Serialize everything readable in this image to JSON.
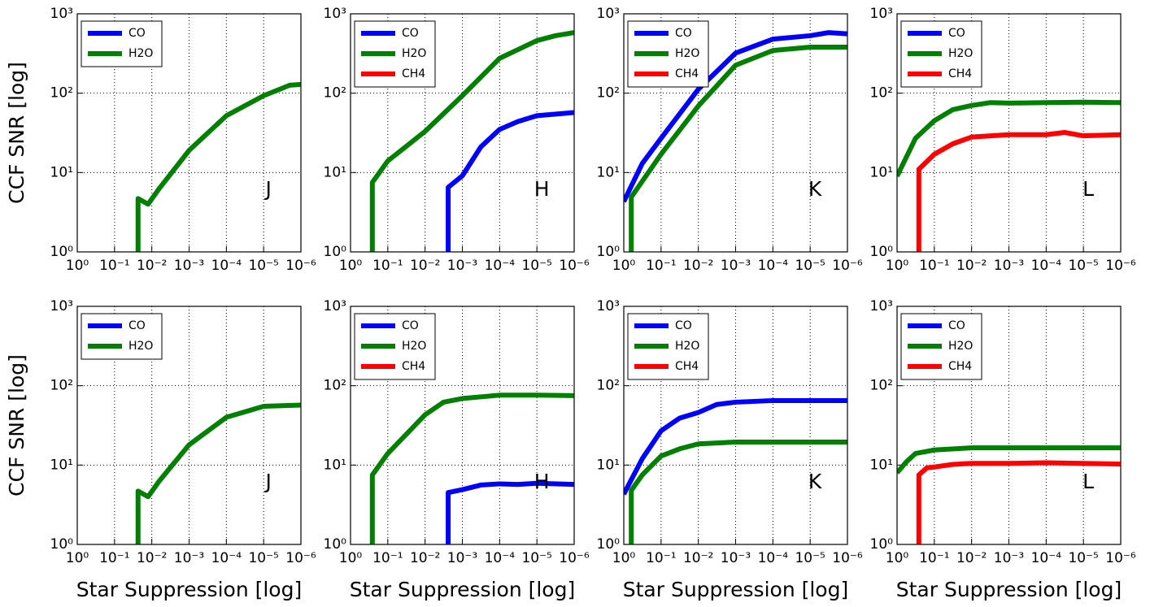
{
  "chart_data": [
    {
      "type": "line",
      "xscale": "log",
      "yscale": "log",
      "xlim": [
        1,
        1e-06
      ],
      "ylim": [
        1,
        1000
      ],
      "grid": true,
      "legend": "upper left",
      "annotation": "J",
      "ylabel": "CCF SNR [log]",
      "xticks": [
        {
          "value": 1,
          "label": "10⁰"
        },
        {
          "value": 0.1,
          "label": "10⁻¹"
        },
        {
          "value": 0.01,
          "label": "10⁻²"
        },
        {
          "value": 0.001,
          "label": "10⁻³"
        },
        {
          "value": 0.0001,
          "label": "10⁻⁴"
        },
        {
          "value": 1e-05,
          "label": "10⁻⁵"
        },
        {
          "value": 1e-06,
          "label": "10⁻⁶"
        }
      ],
      "yticks": [
        {
          "value": 1,
          "label": "10⁰"
        },
        {
          "value": 10,
          "label": "10¹"
        },
        {
          "value": 100,
          "label": "10²"
        },
        {
          "value": 1000,
          "label": "10³"
        }
      ],
      "series": [
        {
          "name": "CO",
          "color": "#0000ff",
          "x": [],
          "values": []
        },
        {
          "name": "H2O",
          "color": "#008000",
          "x": [
            0.0234,
            0.0234,
            0.0126,
            0.0063,
            0.001,
            0.0001,
            1e-05,
            2e-06,
            1e-06
          ],
          "values": [
            1,
            4.7,
            4.0,
            6.3,
            19,
            52,
            93,
            126,
            129
          ]
        }
      ]
    },
    {
      "type": "line",
      "xscale": "log",
      "yscale": "log",
      "xlim": [
        1,
        1e-06
      ],
      "ylim": [
        1,
        1000
      ],
      "grid": true,
      "legend": "upper left",
      "annotation": "H",
      "xticks": [
        {
          "value": 1,
          "label": "10⁰"
        },
        {
          "value": 0.1,
          "label": "10⁻¹"
        },
        {
          "value": 0.01,
          "label": "10⁻²"
        },
        {
          "value": 0.001,
          "label": "10⁻³"
        },
        {
          "value": 0.0001,
          "label": "10⁻⁴"
        },
        {
          "value": 1e-05,
          "label": "10⁻⁵"
        },
        {
          "value": 1e-06,
          "label": "10⁻⁶"
        }
      ],
      "yticks": [
        {
          "value": 1,
          "label": "10⁰"
        },
        {
          "value": 10,
          "label": "10¹"
        },
        {
          "value": 100,
          "label": "10²"
        },
        {
          "value": 1000,
          "label": "10³"
        }
      ],
      "series": [
        {
          "name": "CO",
          "color": "#0000ff",
          "x": [
            0.0024,
            0.0024,
            0.001,
            0.00032,
            0.0001,
            3.2e-05,
            1e-05,
            1e-06
          ],
          "values": [
            1,
            6.5,
            9.1,
            21,
            35,
            44,
            52,
            57
          ]
        },
        {
          "name": "H2O",
          "color": "#008000",
          "x": [
            0.26,
            0.26,
            0.1,
            0.01,
            0.001,
            0.0001,
            1e-05,
            3.2e-06,
            1e-06
          ],
          "values": [
            1,
            7.5,
            14,
            33,
            93,
            275,
            460,
            530,
            580
          ]
        },
        {
          "name": "CH4",
          "color": "#ff0000",
          "x": [],
          "values": []
        }
      ]
    },
    {
      "type": "line",
      "xscale": "log",
      "yscale": "log",
      "xlim": [
        1,
        1e-06
      ],
      "ylim": [
        1,
        1000
      ],
      "grid": true,
      "legend": "upper left",
      "annotation": "K",
      "xticks": [
        {
          "value": 1,
          "label": "10⁰"
        },
        {
          "value": 0.1,
          "label": "10⁻¹"
        },
        {
          "value": 0.01,
          "label": "10⁻²"
        },
        {
          "value": 0.001,
          "label": "10⁻³"
        },
        {
          "value": 0.0001,
          "label": "10⁻⁴"
        },
        {
          "value": 1e-05,
          "label": "10⁻⁵"
        },
        {
          "value": 1e-06,
          "label": "10⁻⁶"
        }
      ],
      "yticks": [
        {
          "value": 1,
          "label": "10⁰"
        },
        {
          "value": 10,
          "label": "10¹"
        },
        {
          "value": 100,
          "label": "10²"
        },
        {
          "value": 1000,
          "label": "10³"
        }
      ],
      "series": [
        {
          "name": "CO",
          "color": "#0000ff",
          "x": [
            1,
            0.32,
            0.1,
            0.01,
            0.001,
            0.0001,
            1e-05,
            3.2e-06,
            1e-06
          ],
          "values": [
            4.3,
            13,
            27,
            112,
            320,
            480,
            530,
            580,
            560
          ]
        },
        {
          "name": "H2O",
          "color": "#008000",
          "x": [
            0.63,
            0.63,
            0.1,
            0.01,
            0.001,
            0.0001,
            1e-05,
            1e-06
          ],
          "values": [
            1,
            4.9,
            17,
            69,
            225,
            345,
            380,
            380
          ]
        },
        {
          "name": "CH4",
          "color": "#ff0000",
          "x": [],
          "values": []
        }
      ]
    },
    {
      "type": "line",
      "xscale": "log",
      "yscale": "log",
      "xlim": [
        1,
        1e-06
      ],
      "ylim": [
        1,
        1000
      ],
      "grid": true,
      "legend": "upper left",
      "annotation": "L",
      "xticks": [
        {
          "value": 1,
          "label": "10⁰"
        },
        {
          "value": 0.1,
          "label": "10⁻¹"
        },
        {
          "value": 0.01,
          "label": "10⁻²"
        },
        {
          "value": 0.001,
          "label": "10⁻³"
        },
        {
          "value": 0.0001,
          "label": "10⁻⁴"
        },
        {
          "value": 1e-05,
          "label": "10⁻⁵"
        },
        {
          "value": 1e-06,
          "label": "10⁻⁶"
        }
      ],
      "yticks": [
        {
          "value": 1,
          "label": "10⁰"
        },
        {
          "value": 10,
          "label": "10¹"
        },
        {
          "value": 100,
          "label": "10²"
        },
        {
          "value": 1000,
          "label": "10³"
        }
      ],
      "series": [
        {
          "name": "CO",
          "color": "#0000ff",
          "x": [],
          "values": []
        },
        {
          "name": "H2O",
          "color": "#008000",
          "x": [
            1,
            0.32,
            0.1,
            0.032,
            0.01,
            0.0032,
            0.001,
            0.0001,
            1e-05,
            1e-06
          ],
          "values": [
            9,
            27,
            45,
            62,
            70,
            76,
            75,
            76,
            77,
            76
          ]
        },
        {
          "name": "CH4",
          "color": "#ff0000",
          "x": [
            0.26,
            0.26,
            0.1,
            0.032,
            0.01,
            0.001,
            0.0001,
            3.2e-05,
            1e-05,
            1e-06
          ],
          "values": [
            1,
            11,
            17,
            23,
            28,
            30,
            30,
            32,
            29,
            30
          ]
        }
      ]
    },
    {
      "type": "line",
      "xscale": "log",
      "yscale": "log",
      "xlim": [
        1,
        1e-06
      ],
      "ylim": [
        1,
        1000
      ],
      "grid": true,
      "legend": "upper left",
      "annotation": "J",
      "ylabel": "CCF SNR [log]",
      "xlabel": "Star Suppression [log]",
      "xticks": [
        {
          "value": 1,
          "label": "10⁰"
        },
        {
          "value": 0.1,
          "label": "10⁻¹"
        },
        {
          "value": 0.01,
          "label": "10⁻²"
        },
        {
          "value": 0.001,
          "label": "10⁻³"
        },
        {
          "value": 0.0001,
          "label": "10⁻⁴"
        },
        {
          "value": 1e-05,
          "label": "10⁻⁵"
        },
        {
          "value": 1e-06,
          "label": "10⁻⁶"
        }
      ],
      "yticks": [
        {
          "value": 1,
          "label": "10⁰"
        },
        {
          "value": 10,
          "label": "10¹"
        },
        {
          "value": 100,
          "label": "10²"
        },
        {
          "value": 1000,
          "label": "10³"
        }
      ],
      "series": [
        {
          "name": "CO",
          "color": "#0000ff",
          "x": [],
          "values": []
        },
        {
          "name": "H2O",
          "color": "#008000",
          "x": [
            0.0234,
            0.0234,
            0.0126,
            0.0063,
            0.001,
            0.0001,
            1e-05,
            1e-06
          ],
          "values": [
            1,
            4.7,
            4.0,
            6.3,
            18,
            40,
            55,
            57
          ]
        }
      ]
    },
    {
      "type": "line",
      "xscale": "log",
      "yscale": "log",
      "xlim": [
        1,
        1e-06
      ],
      "ylim": [
        1,
        1000
      ],
      "grid": true,
      "legend": "upper left",
      "annotation": "H",
      "xlabel": "Star Suppression [log]",
      "xticks": [
        {
          "value": 1,
          "label": "10⁰"
        },
        {
          "value": 0.1,
          "label": "10⁻¹"
        },
        {
          "value": 0.01,
          "label": "10⁻²"
        },
        {
          "value": 0.001,
          "label": "10⁻³"
        },
        {
          "value": 0.0001,
          "label": "10⁻⁴"
        },
        {
          "value": 1e-05,
          "label": "10⁻⁵"
        },
        {
          "value": 1e-06,
          "label": "10⁻⁶"
        }
      ],
      "yticks": [
        {
          "value": 1,
          "label": "10⁰"
        },
        {
          "value": 10,
          "label": "10¹"
        },
        {
          "value": 100,
          "label": "10²"
        },
        {
          "value": 1000,
          "label": "10³"
        }
      ],
      "series": [
        {
          "name": "CO",
          "color": "#0000ff",
          "x": [
            0.0024,
            0.0024,
            0.001,
            0.00032,
            0.0001,
            3.2e-05,
            1e-05,
            1e-06
          ],
          "values": [
            1,
            4.5,
            4.9,
            5.6,
            5.8,
            5.7,
            5.9,
            5.7
          ]
        },
        {
          "name": "H2O",
          "color": "#008000",
          "x": [
            0.26,
            0.26,
            0.1,
            0.01,
            0.0032,
            0.001,
            0.0001,
            1e-05,
            1e-06
          ],
          "values": [
            1,
            7.5,
            14,
            43,
            62,
            69,
            76,
            76,
            75
          ]
        },
        {
          "name": "CH4",
          "color": "#ff0000",
          "x": [],
          "values": []
        }
      ]
    },
    {
      "type": "line",
      "xscale": "log",
      "yscale": "log",
      "xlim": [
        1,
        1e-06
      ],
      "ylim": [
        1,
        1000
      ],
      "grid": true,
      "legend": "upper left",
      "annotation": "K",
      "xlabel": "Star Suppression [log]",
      "xticks": [
        {
          "value": 1,
          "label": "10⁰"
        },
        {
          "value": 0.1,
          "label": "10⁻¹"
        },
        {
          "value": 0.01,
          "label": "10⁻²"
        },
        {
          "value": 0.001,
          "label": "10⁻³"
        },
        {
          "value": 0.0001,
          "label": "10⁻⁴"
        },
        {
          "value": 1e-05,
          "label": "10⁻⁵"
        },
        {
          "value": 1e-06,
          "label": "10⁻⁶"
        }
      ],
      "yticks": [
        {
          "value": 1,
          "label": "10⁰"
        },
        {
          "value": 10,
          "label": "10¹"
        },
        {
          "value": 100,
          "label": "10²"
        },
        {
          "value": 1000,
          "label": "10³"
        }
      ],
      "series": [
        {
          "name": "CO",
          "color": "#0000ff",
          "x": [
            1,
            0.32,
            0.1,
            0.032,
            0.01,
            0.0032,
            0.001,
            0.0001,
            1e-05,
            1e-06
          ],
          "values": [
            4.3,
            12,
            27,
            39,
            46,
            58,
            62,
            65,
            65,
            65
          ]
        },
        {
          "name": "H2O",
          "color": "#008000",
          "x": [
            0.63,
            0.63,
            0.32,
            0.1,
            0.032,
            0.01,
            0.001,
            1e-06
          ],
          "values": [
            1,
            4.8,
            7.5,
            13,
            16,
            18.5,
            19.5,
            19.5
          ]
        },
        {
          "name": "CH4",
          "color": "#ff0000",
          "x": [],
          "values": []
        }
      ]
    },
    {
      "type": "line",
      "xscale": "log",
      "yscale": "log",
      "xlim": [
        1,
        1e-06
      ],
      "ylim": [
        1,
        1000
      ],
      "grid": true,
      "legend": "upper left",
      "annotation": "L",
      "xlabel": "Star Suppression [log]",
      "xticks": [
        {
          "value": 1,
          "label": "10⁰"
        },
        {
          "value": 0.1,
          "label": "10⁻¹"
        },
        {
          "value": 0.01,
          "label": "10⁻²"
        },
        {
          "value": 0.001,
          "label": "10⁻³"
        },
        {
          "value": 0.0001,
          "label": "10⁻⁴"
        },
        {
          "value": 1e-05,
          "label": "10⁻⁵"
        },
        {
          "value": 1e-06,
          "label": "10⁻⁶"
        }
      ],
      "yticks": [
        {
          "value": 1,
          "label": "10⁰"
        },
        {
          "value": 10,
          "label": "10¹"
        },
        {
          "value": 100,
          "label": "10²"
        },
        {
          "value": 1000,
          "label": "10³"
        }
      ],
      "series": [
        {
          "name": "CO",
          "color": "#0000ff",
          "x": [],
          "values": []
        },
        {
          "name": "H2O",
          "color": "#008000",
          "x": [
            1,
            0.56,
            0.32,
            0.1,
            0.01,
            0.001,
            0.0001,
            1e-05,
            1e-06
          ],
          "values": [
            8,
            11,
            14,
            15.5,
            16.5,
            16.5,
            16.5,
            16.5,
            16.5
          ]
        },
        {
          "name": "CH4",
          "color": "#ff0000",
          "x": [
            0.26,
            0.26,
            0.16,
            0.079,
            0.032,
            0.01,
            0.001,
            0.0001,
            1e-05,
            1e-06
          ],
          "values": [
            1,
            7.5,
            9.2,
            9.6,
            10.2,
            10.5,
            10.5,
            10.7,
            10.5,
            10.3
          ]
        }
      ]
    }
  ]
}
